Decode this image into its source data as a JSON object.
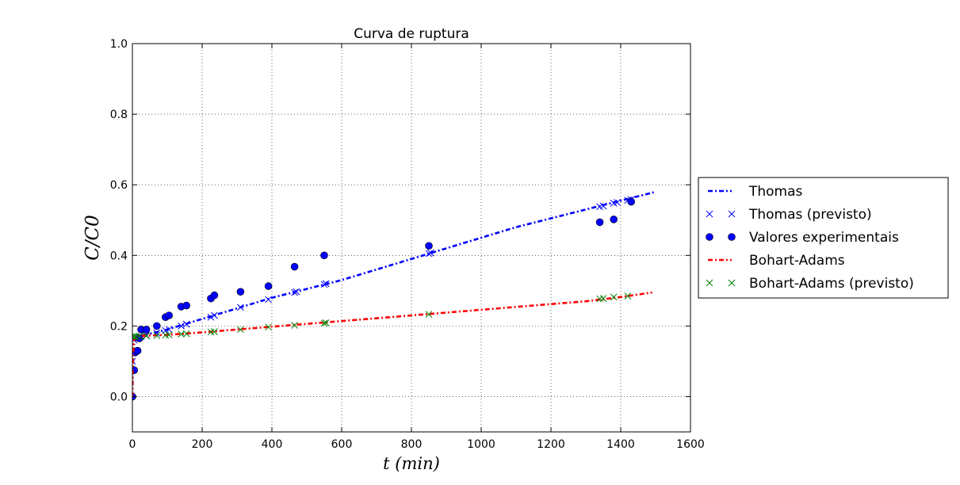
{
  "chart_data": {
    "type": "scatter",
    "title": "Curva de ruptura",
    "xlabel": "t (min)",
    "ylabel": "C/C0",
    "xlim": [
      0,
      1600
    ],
    "ylim": [
      -0.1,
      1.0
    ],
    "xticks": [
      "0",
      "200",
      "400",
      "600",
      "800",
      "1000",
      "1200",
      "1400",
      "1600"
    ],
    "yticks": [
      "0.0",
      "0.2",
      "0.4",
      "0.6",
      "0.8",
      "1.0"
    ],
    "grid": true,
    "legend_position": "right, outside plot",
    "series": [
      {
        "name": "Thomas",
        "kind": "line",
        "style": "dash-dot",
        "color": "#0000ff",
        "x": [
          0,
          1,
          3,
          5,
          10,
          20,
          50,
          100,
          200,
          300,
          400,
          500,
          600,
          700,
          800,
          900,
          1000,
          1100,
          1200,
          1300,
          1400,
          1500
        ],
        "y": [
          0.0,
          0.05,
          0.12,
          0.15,
          0.165,
          0.17,
          0.178,
          0.19,
          0.22,
          0.25,
          0.28,
          0.305,
          0.33,
          0.36,
          0.39,
          0.42,
          0.45,
          0.48,
          0.505,
          0.53,
          0.555,
          0.58
        ]
      },
      {
        "name": "Thomas (previsto)",
        "kind": "marker",
        "marker": "x",
        "color": "#0000ff",
        "x": [
          0,
          5,
          10,
          15,
          20,
          25,
          40,
          70,
          95,
          105,
          140,
          155,
          225,
          235,
          310,
          390,
          465,
          470,
          550,
          555,
          850,
          855,
          1340,
          1350,
          1380,
          1390,
          1420,
          1430
        ],
        "y": [
          0.1,
          0.16,
          0.165,
          0.167,
          0.168,
          0.17,
          0.173,
          0.18,
          0.187,
          0.19,
          0.2,
          0.205,
          0.225,
          0.23,
          0.253,
          0.275,
          0.295,
          0.297,
          0.318,
          0.32,
          0.405,
          0.407,
          0.538,
          0.54,
          0.548,
          0.55,
          0.556,
          0.558
        ]
      },
      {
        "name": "Valores experimentais",
        "kind": "marker",
        "marker": "o",
        "color": "#0000ff",
        "x": [
          0,
          5,
          8,
          15,
          20,
          25,
          40,
          70,
          95,
          105,
          140,
          155,
          225,
          235,
          310,
          390,
          465,
          550,
          850,
          1340,
          1380,
          1430
        ],
        "y": [
          0.0,
          0.075,
          0.125,
          0.13,
          0.165,
          0.19,
          0.19,
          0.2,
          0.225,
          0.23,
          0.255,
          0.258,
          0.278,
          0.287,
          0.297,
          0.313,
          0.368,
          0.4,
          0.427,
          0.494,
          0.502,
          0.552
        ]
      },
      {
        "name": "Bohart-Adams",
        "kind": "line",
        "style": "dash-dot",
        "color": "#ff0000",
        "x": [
          0,
          1,
          3,
          5,
          10,
          20,
          50,
          100,
          200,
          300,
          400,
          500,
          600,
          700,
          800,
          900,
          1000,
          1100,
          1200,
          1300,
          1400,
          1490
        ],
        "y": [
          0.0,
          0.08,
          0.14,
          0.16,
          0.17,
          0.172,
          0.173,
          0.175,
          0.182,
          0.19,
          0.198,
          0.206,
          0.214,
          0.222,
          0.23,
          0.238,
          0.246,
          0.254,
          0.262,
          0.27,
          0.282,
          0.295
        ]
      },
      {
        "name": "Bohart-Adams (previsto)",
        "kind": "marker",
        "marker": "x",
        "color": "#008000",
        "x": [
          0,
          5,
          10,
          20,
          40,
          70,
          95,
          105,
          140,
          155,
          225,
          235,
          310,
          390,
          465,
          550,
          555,
          850,
          1340,
          1350,
          1380,
          1420
        ],
        "y": [
          0.17,
          0.17,
          0.17,
          0.171,
          0.172,
          0.173,
          0.174,
          0.175,
          0.177,
          0.178,
          0.183,
          0.184,
          0.19,
          0.197,
          0.202,
          0.208,
          0.209,
          0.233,
          0.277,
          0.278,
          0.282,
          0.285
        ]
      }
    ]
  }
}
